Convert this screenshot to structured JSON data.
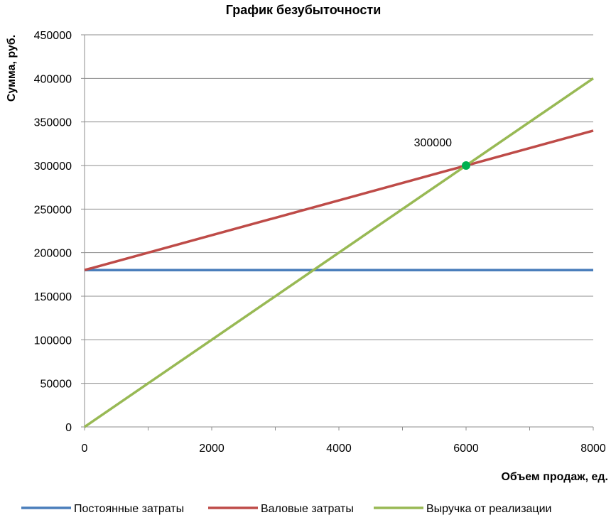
{
  "chart_data": {
    "type": "line",
    "title": "График безубыточности",
    "xlabel": "Объем продаж, ед.",
    "ylabel": "Сумма, руб.",
    "xlim": [
      0,
      8000
    ],
    "ylim": [
      0,
      450000
    ],
    "x_ticks": [
      "0",
      "2000",
      "4000",
      "6000",
      "8000"
    ],
    "y_ticks": [
      "0",
      "50000",
      "100000",
      "150000",
      "200000",
      "250000",
      "300000",
      "350000",
      "400000",
      "450000"
    ],
    "grid": "horizontal",
    "legend_position": "bottom",
    "series": [
      {
        "name": "Постоянные затраты",
        "color": "#4a7ebb",
        "x": [
          0,
          8000
        ],
        "y": [
          180000,
          180000
        ]
      },
      {
        "name": "Валовые затраты",
        "color": "#be4b48",
        "x": [
          0,
          8000
        ],
        "y": [
          180000,
          340000
        ]
      },
      {
        "name": "Выручка от реализации",
        "color": "#98b954",
        "x": [
          0,
          8000
        ],
        "y": [
          0,
          400000
        ]
      }
    ],
    "break_even_point": {
      "x": 6000,
      "y": 300000,
      "label": "300000",
      "color": "#00b050"
    }
  }
}
